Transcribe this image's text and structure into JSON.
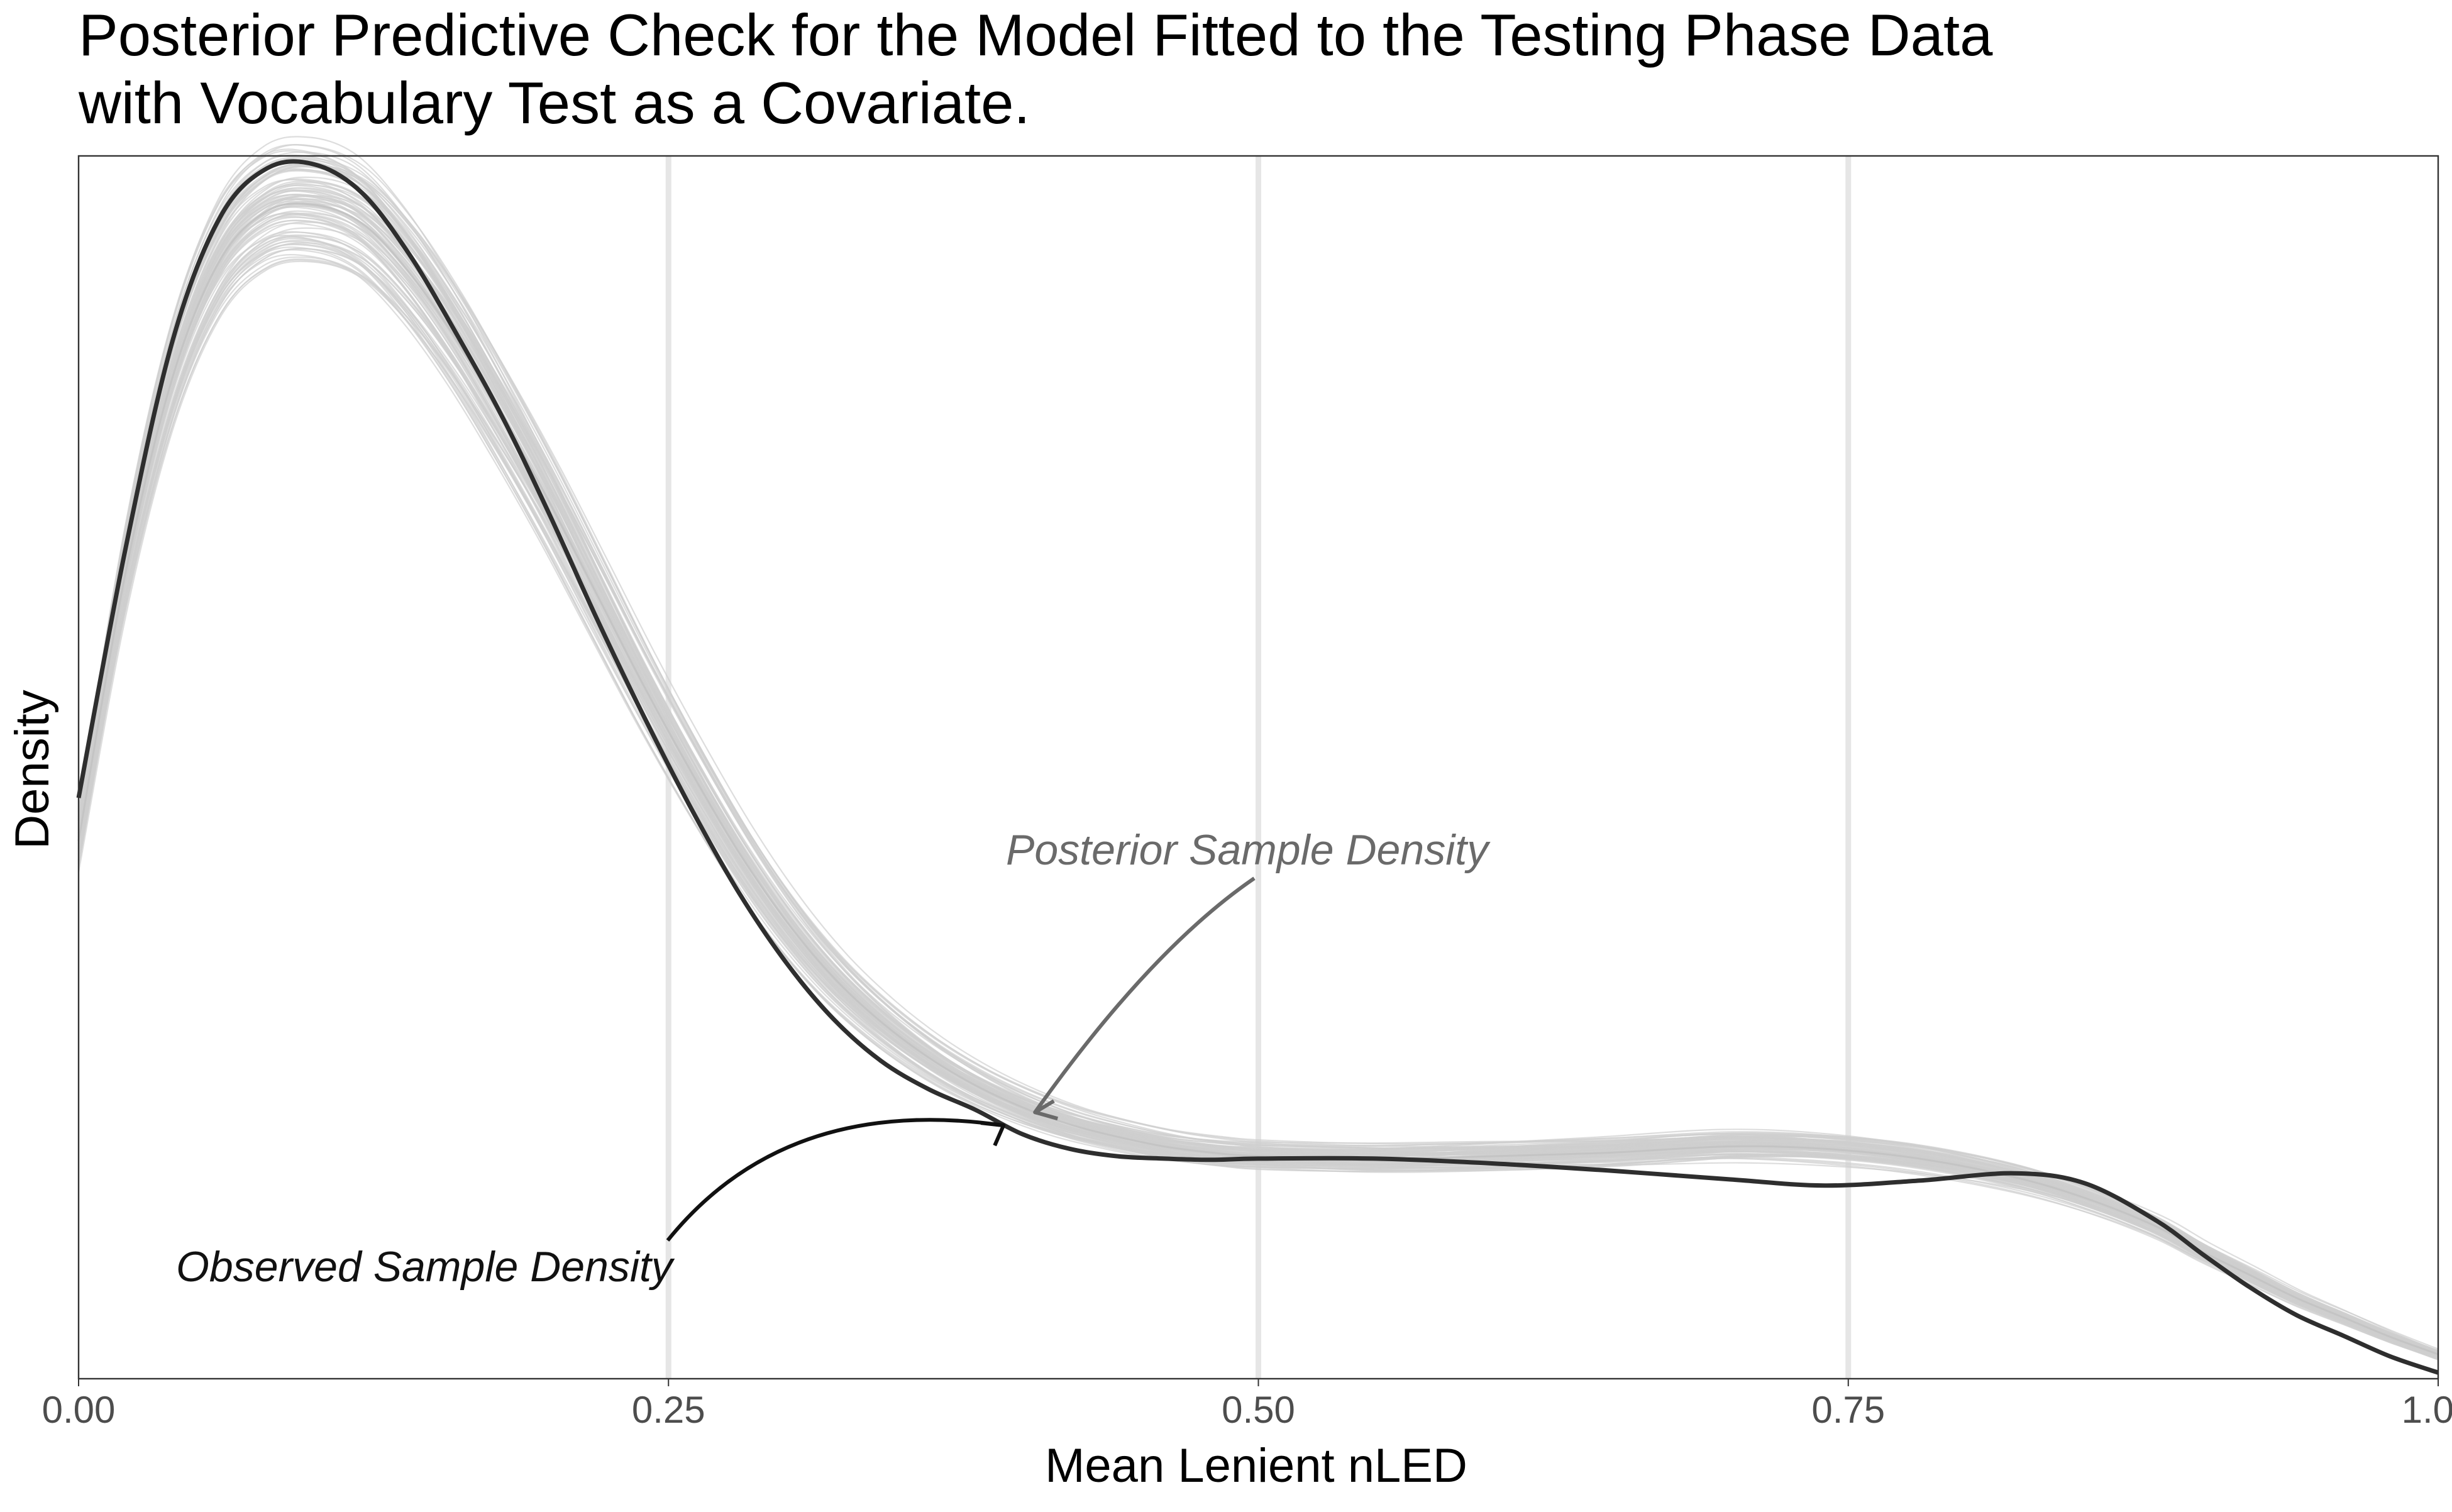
{
  "chart_data": {
    "type": "line",
    "title": "Posterior Predictive Check for the Model Fitted to the Testing Phase Data\nwith Vocabulary Test as a Covariate.",
    "xlabel": "Mean Lenient nLED",
    "ylabel": "Density",
    "xlim": [
      0.0,
      1.0
    ],
    "x_ticks": [
      0.0,
      0.25,
      0.5,
      0.75,
      1.0
    ],
    "x_tick_labels": [
      "0.00",
      "0.25",
      "0.50",
      "0.75",
      "1.00"
    ],
    "y_tick_labels": [],
    "grid": "vertical major gridlines only",
    "legend": "none",
    "colors": {
      "observed": "#2e2e2e",
      "posterior": "#cfcfcf",
      "gridline": "#e6e6e6",
      "annotation_observed": "#111111",
      "annotation_posterior": "#6a6a6a"
    },
    "series": [
      {
        "name": "Observed Sample Density",
        "x": [
          0.0,
          0.02,
          0.04,
          0.06,
          0.08,
          0.1,
          0.12,
          0.14,
          0.16,
          0.18,
          0.2,
          0.22,
          0.24,
          0.26,
          0.28,
          0.3,
          0.32,
          0.34,
          0.36,
          0.38,
          0.4,
          0.42,
          0.44,
          0.46,
          0.48,
          0.5,
          0.55,
          0.6,
          0.65,
          0.7,
          0.74,
          0.78,
          0.82,
          0.85,
          0.88,
          0.9,
          0.92,
          0.94,
          0.96,
          0.98,
          1.0
        ],
        "y": [
          0.475,
          0.68,
          0.85,
          0.95,
          0.99,
          0.993,
          0.97,
          0.92,
          0.855,
          0.785,
          0.705,
          0.62,
          0.54,
          0.465,
          0.397,
          0.34,
          0.294,
          0.26,
          0.237,
          0.22,
          0.2,
          0.188,
          0.182,
          0.18,
          0.179,
          0.18,
          0.18,
          0.176,
          0.17,
          0.163,
          0.158,
          0.162,
          0.168,
          0.16,
          0.13,
          0.102,
          0.075,
          0.052,
          0.035,
          0.018,
          0.005
        ]
      },
      {
        "name": "Posterior Sample Density",
        "x": [
          0.0,
          0.02,
          0.04,
          0.06,
          0.08,
          0.1,
          0.12,
          0.14,
          0.16,
          0.18,
          0.2,
          0.22,
          0.24,
          0.26,
          0.28,
          0.3,
          0.32,
          0.34,
          0.36,
          0.38,
          0.4,
          0.42,
          0.44,
          0.46,
          0.48,
          0.5,
          0.55,
          0.6,
          0.65,
          0.7,
          0.74,
          0.78,
          0.82,
          0.85,
          0.88,
          0.9,
          0.92,
          0.94,
          0.96,
          0.98,
          1.0
        ],
        "y": [
          0.44,
          0.66,
          0.82,
          0.915,
          0.955,
          0.96,
          0.945,
          0.905,
          0.85,
          0.785,
          0.715,
          0.64,
          0.565,
          0.495,
          0.43,
          0.374,
          0.328,
          0.292,
          0.263,
          0.24,
          0.222,
          0.208,
          0.198,
          0.19,
          0.185,
          0.182,
          0.18,
          0.182,
          0.185,
          0.19,
          0.188,
          0.18,
          0.165,
          0.148,
          0.125,
          0.104,
          0.085,
          0.066,
          0.05,
          0.034,
          0.02
        ]
      }
    ],
    "annotations": [
      {
        "text": "Posterior Sample Density",
        "points_to": {
          "x": 0.4,
          "series": "Posterior Sample Density"
        }
      },
      {
        "text": "Observed Sample Density",
        "points_to": {
          "x": 0.38,
          "series": "Observed Sample Density"
        }
      }
    ]
  }
}
